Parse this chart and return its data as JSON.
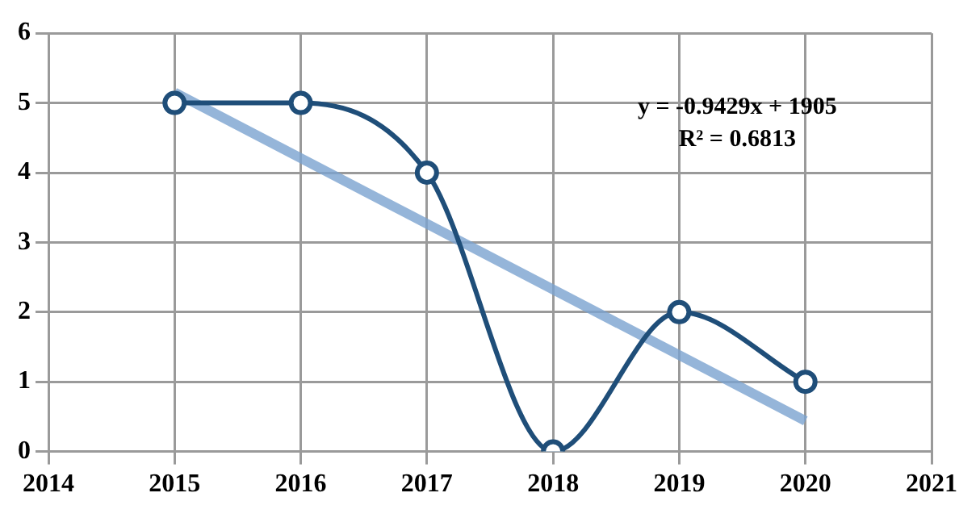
{
  "chart_data": {
    "type": "line",
    "xlim": [
      2014,
      2021
    ],
    "xticks": [
      2014,
      2015,
      2016,
      2017,
      2018,
      2019,
      2020,
      2021
    ],
    "ylim": [
      0,
      6
    ],
    "yticks": [
      0,
      1,
      2,
      3,
      4,
      5,
      6
    ],
    "grid": true,
    "marker": "circle",
    "legend": false,
    "series": [
      {
        "color": "#1f4e79",
        "x": [
          2015,
          2016,
          2017,
          2018,
          2019,
          2020
        ],
        "values": [
          5,
          5,
          4,
          0,
          2,
          1
        ]
      },
      {
        "color": "#7ba3d0",
        "x": [
          2015,
          2020
        ],
        "values": [
          5.15,
          0.44
        ],
        "marker": "none"
      }
    ],
    "annotations": [
      "y = -0.9429x + 1905",
      "R² = 0.6813"
    ]
  }
}
